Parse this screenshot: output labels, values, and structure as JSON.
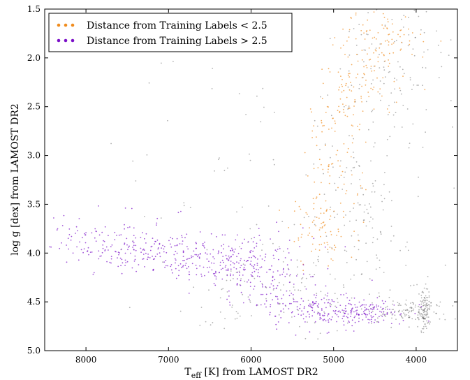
{
  "chart_data": {
    "type": "scatter",
    "title": "",
    "xlabel_main": "T",
    "xlabel_sub": "eff",
    "xlabel_rest": " [K] from LAMOST DR2",
    "ylabel": "log g [dex] from LAMOST DR2",
    "xlim": [
      8500,
      3500
    ],
    "ylim": [
      5.0,
      1.5
    ],
    "x_ticks": [
      8000,
      7000,
      6000,
      5000,
      4000
    ],
    "y_ticks": [
      1.5,
      2.0,
      2.5,
      3.0,
      3.5,
      4.0,
      4.5,
      5.0
    ],
    "x_tick_labels": [
      "8000",
      "7000",
      "6000",
      "5000",
      "4000"
    ],
    "y_tick_labels": [
      "1.5",
      "2.0",
      "2.5",
      "3.0",
      "3.5",
      "4.0",
      "4.5",
      "5.0"
    ],
    "grid": false,
    "legend_position": "top-left",
    "series": [
      {
        "name": "Distance from Training Labels < 2.5",
        "color": "#f08c1e",
        "regions": [
          {
            "cx": 4850,
            "cy": 2.5,
            "sx": 180,
            "sy": 0.25
          },
          {
            "cx": 4550,
            "cy": 2.0,
            "sx": 250,
            "sy": 0.3
          },
          {
            "cx": 5000,
            "cy": 3.2,
            "sx": 180,
            "sy": 0.35
          },
          {
            "cx": 5200,
            "cy": 3.75,
            "sx": 200,
            "sy": 0.2
          },
          {
            "cx": 4300,
            "cy": 1.75,
            "sx": 200,
            "sy": 0.2
          }
        ]
      },
      {
        "name": "Distance from Training Labels > 2.5",
        "color": "#7b10c8",
        "regions": [
          {
            "cx": 5850,
            "cy": 4.25,
            "sx": 350,
            "sy": 0.18
          },
          {
            "cx": 6350,
            "cy": 4.1,
            "sx": 350,
            "sy": 0.12
          },
          {
            "cx": 5200,
            "cy": 4.55,
            "sx": 300,
            "sy": 0.1
          },
          {
            "cx": 4600,
            "cy": 4.62,
            "sx": 250,
            "sy": 0.06
          },
          {
            "cx": 6900,
            "cy": 4.0,
            "sx": 500,
            "sy": 0.1
          },
          {
            "cx": 7700,
            "cy": 3.9,
            "sx": 500,
            "sy": 0.15
          }
        ]
      },
      {
        "name": "",
        "color": "#222222",
        "regions": [
          {
            "cx": 4300,
            "cy": 2.0,
            "sx": 350,
            "sy": 0.35
          },
          {
            "cx": 4100,
            "cy": 4.6,
            "sx": 250,
            "sy": 0.07
          },
          {
            "cx": 3900,
            "cy": 4.58,
            "sx": 40,
            "sy": 0.1
          },
          {
            "cx": 5500,
            "cy": 4.35,
            "sx": 700,
            "sy": 0.25
          },
          {
            "cx": 6000,
            "cy": 3.5,
            "sx": 1100,
            "sy": 0.8
          },
          {
            "cx": 4600,
            "cy": 3.4,
            "sx": 300,
            "sy": 0.5
          }
        ]
      }
    ]
  }
}
